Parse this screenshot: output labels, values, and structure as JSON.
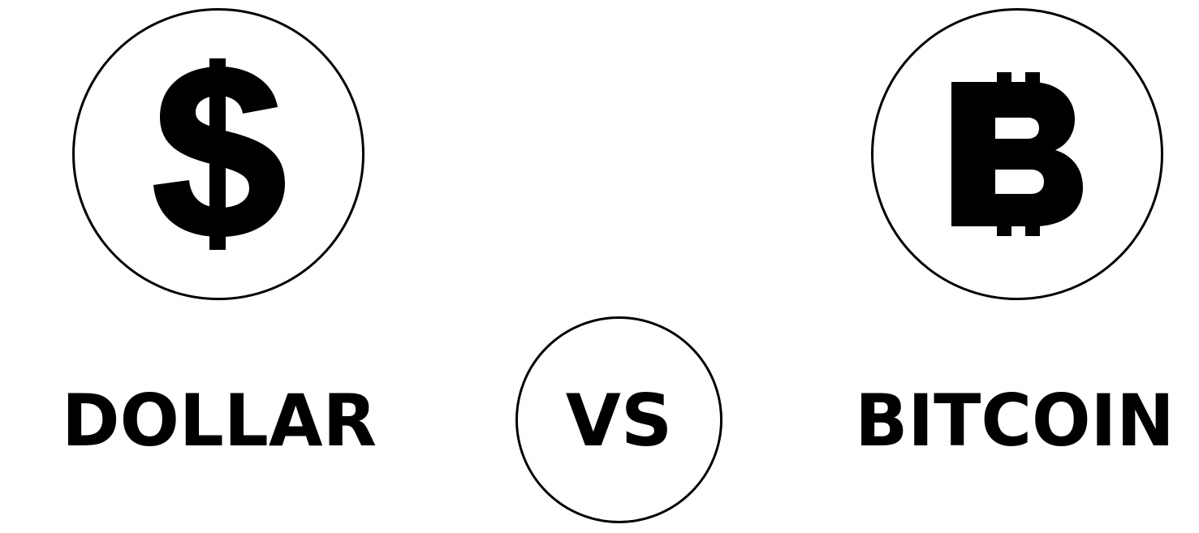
{
  "left": {
    "label": "DOLLAR",
    "symbol_icon": "dollar-sign-icon"
  },
  "center": {
    "label": "VS"
  },
  "right": {
    "label": "BITCOIN",
    "symbol_icon": "bitcoin-sign-icon"
  },
  "colors": {
    "foreground": "#000000",
    "background": "#ffffff"
  }
}
